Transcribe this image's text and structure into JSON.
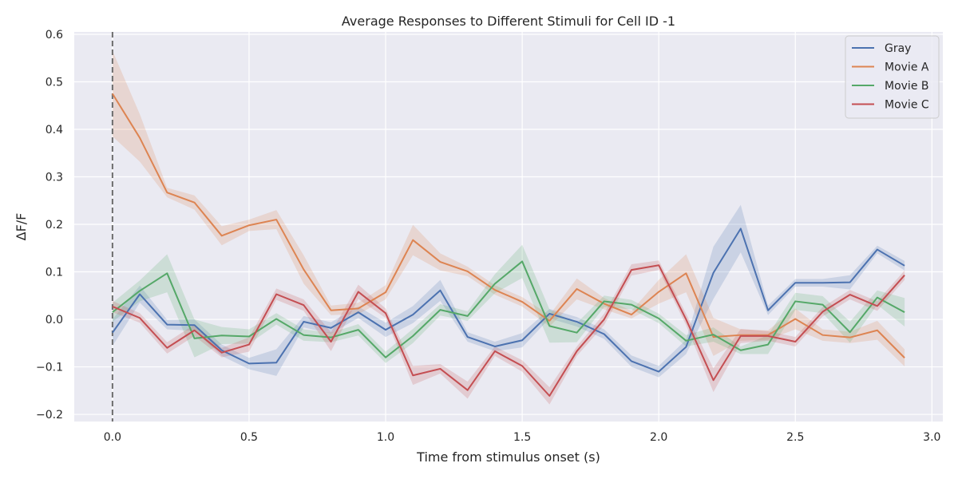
{
  "chart_data": {
    "type": "line",
    "title": "Average Responses to Different Stimuli for Cell ID -1",
    "xlabel": "Time from stimulus onset (s)",
    "ylabel": "ΔF/F",
    "xlim": [
      -0.14,
      3.04
    ],
    "ylim": [
      -0.215,
      0.605
    ],
    "xticks": [
      0.0,
      0.5,
      1.0,
      1.5,
      2.0,
      2.5,
      3.0
    ],
    "xtick_labels": [
      "0.0",
      "0.5",
      "1.0",
      "1.5",
      "2.0",
      "2.5",
      "3.0"
    ],
    "yticks": [
      -0.2,
      -0.1,
      0.0,
      0.1,
      0.2,
      0.3,
      0.4,
      0.5,
      0.6
    ],
    "ytick_labels": [
      "−0.2",
      "−0.1",
      "0.0",
      "0.1",
      "0.2",
      "0.3",
      "0.4",
      "0.5",
      "0.6"
    ],
    "grid": true,
    "background": "#eaeaf2",
    "legend_position": "top-right",
    "onset_marker": {
      "x": 0.0,
      "style": "dashed",
      "color": "#6e6e6e"
    },
    "x": [
      0.0,
      0.1,
      0.2,
      0.3,
      0.4,
      0.5,
      0.6,
      0.7,
      0.8,
      0.9,
      1.0,
      1.1,
      1.2,
      1.3,
      1.4,
      1.5,
      1.6,
      1.7,
      1.8,
      1.9,
      2.0,
      2.1,
      2.2,
      2.3,
      2.4,
      2.5,
      2.6,
      2.7,
      2.8,
      2.9
    ],
    "series": [
      {
        "name": "Gray",
        "color": "#4c72b0",
        "values": [
          -0.028,
          0.053,
          -0.011,
          -0.012,
          -0.065,
          -0.093,
          -0.091,
          -0.005,
          -0.018,
          0.015,
          -0.022,
          0.01,
          0.061,
          -0.037,
          -0.057,
          -0.044,
          0.012,
          -0.005,
          -0.031,
          -0.088,
          -0.11,
          -0.058,
          0.098,
          0.191,
          0.019,
          0.077,
          0.077,
          0.078,
          0.147,
          0.113
        ],
        "band": [
          0.028,
          0.018,
          0.01,
          0.012,
          0.012,
          0.012,
          0.028,
          0.012,
          0.012,
          0.012,
          0.015,
          0.018,
          0.022,
          0.01,
          0.01,
          0.015,
          0.01,
          0.01,
          0.01,
          0.012,
          0.012,
          0.015,
          0.055,
          0.05,
          0.01,
          0.008,
          0.008,
          0.015,
          0.008,
          0.01
        ]
      },
      {
        "name": "Movie A",
        "color": "#dd8452",
        "values": [
          0.475,
          0.382,
          0.267,
          0.246,
          0.176,
          0.198,
          0.21,
          0.105,
          0.019,
          0.023,
          0.057,
          0.167,
          0.121,
          0.101,
          0.062,
          0.037,
          -0.003,
          0.064,
          0.033,
          0.01,
          0.058,
          0.097,
          -0.037,
          -0.033,
          -0.033,
          0.001,
          -0.033,
          -0.038,
          -0.023,
          -0.081
        ],
        "band": [
          0.09,
          0.05,
          0.01,
          0.015,
          0.02,
          0.012,
          0.02,
          0.03,
          0.01,
          0.012,
          0.015,
          0.032,
          0.018,
          0.01,
          0.01,
          0.01,
          0.012,
          0.022,
          0.012,
          0.008,
          0.025,
          0.04,
          0.04,
          0.012,
          0.01,
          0.022,
          0.012,
          0.012,
          0.02,
          0.018
        ]
      },
      {
        "name": "Movie B",
        "color": "#55a868",
        "values": [
          0.015,
          0.06,
          0.097,
          -0.04,
          -0.034,
          -0.036,
          0.001,
          -0.033,
          -0.038,
          -0.022,
          -0.08,
          -0.035,
          0.02,
          0.007,
          0.075,
          0.122,
          -0.014,
          -0.028,
          0.038,
          0.031,
          0.002,
          -0.045,
          -0.032,
          -0.065,
          -0.053,
          0.038,
          0.031,
          -0.027,
          0.046,
          0.015
        ],
        "band": [
          0.02,
          0.022,
          0.04,
          0.04,
          0.018,
          0.015,
          0.012,
          0.012,
          0.01,
          0.012,
          0.012,
          0.015,
          0.012,
          0.01,
          0.02,
          0.035,
          0.035,
          0.02,
          0.012,
          0.01,
          0.01,
          0.012,
          0.015,
          0.008,
          0.02,
          0.018,
          0.018,
          0.022,
          0.015,
          0.03
        ]
      },
      {
        "name": "Movie C",
        "color": "#c44e52",
        "values": [
          0.027,
          0.003,
          -0.06,
          -0.023,
          -0.07,
          -0.053,
          0.053,
          0.03,
          -0.047,
          0.058,
          0.013,
          -0.118,
          -0.104,
          -0.149,
          -0.067,
          -0.098,
          -0.161,
          -0.067,
          0.0,
          0.104,
          0.114,
          0.0,
          -0.128,
          -0.035,
          -0.035,
          -0.047,
          0.016,
          0.052,
          0.028,
          0.093
        ],
        "band": [
          0.012,
          0.01,
          0.012,
          0.012,
          0.01,
          0.015,
          0.012,
          0.012,
          0.02,
          0.015,
          0.01,
          0.02,
          0.01,
          0.018,
          0.01,
          0.012,
          0.018,
          0.01,
          0.012,
          0.012,
          0.01,
          0.012,
          0.025,
          0.015,
          0.01,
          0.01,
          0.01,
          0.01,
          0.01,
          0.01
        ]
      }
    ]
  }
}
